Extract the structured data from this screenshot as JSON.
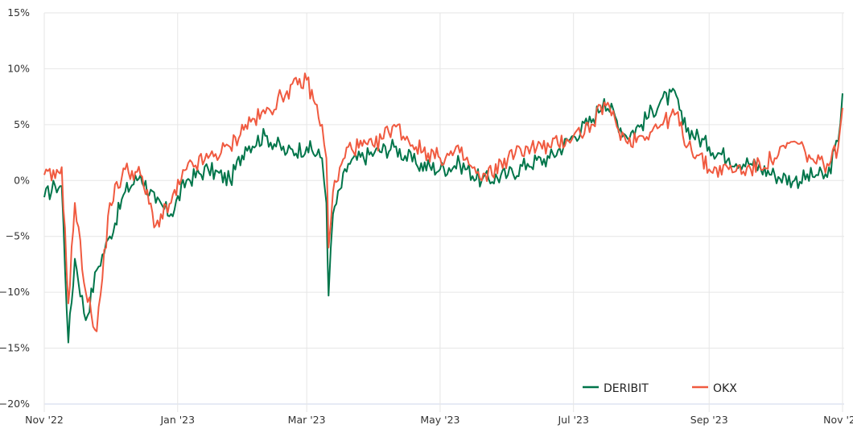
{
  "chart_data": {
    "type": "line",
    "title": "",
    "xlabel": "",
    "ylabel": "",
    "ylim": [
      -20,
      15
    ],
    "grid": true,
    "legend_position": "bottom-right inside",
    "y_ticks": [
      "15%",
      "10%",
      "5%",
      "0%",
      "-5%",
      "-10%",
      "-15%",
      "-20%"
    ],
    "y_tick_values": [
      15,
      10,
      5,
      0,
      -5,
      -10,
      -15,
      -20
    ],
    "x_ticks": [
      "Nov '22",
      "Jan '23",
      "Mar '23",
      "May '23",
      "Jul '23",
      "Sep '23",
      "Nov '23"
    ],
    "x": [
      "2022-11-01",
      "2022-11-06",
      "2022-11-09",
      "2022-11-12",
      "2022-11-15",
      "2022-11-20",
      "2022-11-25",
      "2022-12-01",
      "2022-12-08",
      "2022-12-15",
      "2022-12-22",
      "2022-12-29",
      "2023-01-05",
      "2023-01-15",
      "2023-01-25",
      "2023-02-01",
      "2023-02-10",
      "2023-02-20",
      "2023-03-01",
      "2023-03-08",
      "2023-03-10",
      "2023-03-11",
      "2023-03-13",
      "2023-03-20",
      "2023-04-01",
      "2023-04-10",
      "2023-04-20",
      "2023-05-01",
      "2023-05-10",
      "2023-05-20",
      "2023-06-01",
      "2023-06-10",
      "2023-06-20",
      "2023-07-01",
      "2023-07-10",
      "2023-07-15",
      "2023-07-25",
      "2023-08-01",
      "2023-08-10",
      "2023-08-17",
      "2023-08-20",
      "2023-09-01",
      "2023-09-10",
      "2023-09-20",
      "2023-10-01",
      "2023-10-10",
      "2023-10-20",
      "2023-10-25",
      "2023-10-30",
      "2023-11-01"
    ],
    "series": [
      {
        "name": "DERIBIT",
        "color": "#00754a",
        "values": [
          -1.5,
          -0.5,
          -0.5,
          -14.5,
          -7,
          -12.5,
          -8,
          -5,
          -1,
          0.5,
          -2,
          -3,
          0,
          1,
          0,
          3,
          4,
          2.5,
          3,
          2,
          -2,
          -10.3,
          -3,
          1.5,
          2.5,
          3,
          1.5,
          1,
          1.5,
          0,
          0.5,
          1.5,
          2,
          4,
          5.5,
          7.3,
          4,
          5,
          7.2,
          7.6,
          5,
          3,
          2,
          1.5,
          0.5,
          0,
          0.5,
          0.3,
          3.5,
          7.8
        ]
      },
      {
        "name": "OKX",
        "color": "#f05a40",
        "values": [
          0.5,
          0.2,
          1.2,
          -11,
          -2,
          -10,
          -13.5,
          -2,
          1,
          0.5,
          -4,
          -2,
          1,
          2,
          3,
          5,
          6,
          8,
          9,
          5,
          2,
          -6,
          -1,
          3,
          3,
          5,
          3,
          2,
          2.5,
          0,
          2,
          3,
          3,
          4,
          5,
          7,
          3.5,
          4,
          5,
          6,
          4,
          1,
          1,
          1,
          2,
          3.5,
          1.5,
          1.5,
          3,
          6.5
        ]
      }
    ]
  },
  "legend": {
    "items": [
      {
        "label": "DERIBIT",
        "color": "#00754a"
      },
      {
        "label": "OKX",
        "color": "#f05a40"
      }
    ]
  }
}
